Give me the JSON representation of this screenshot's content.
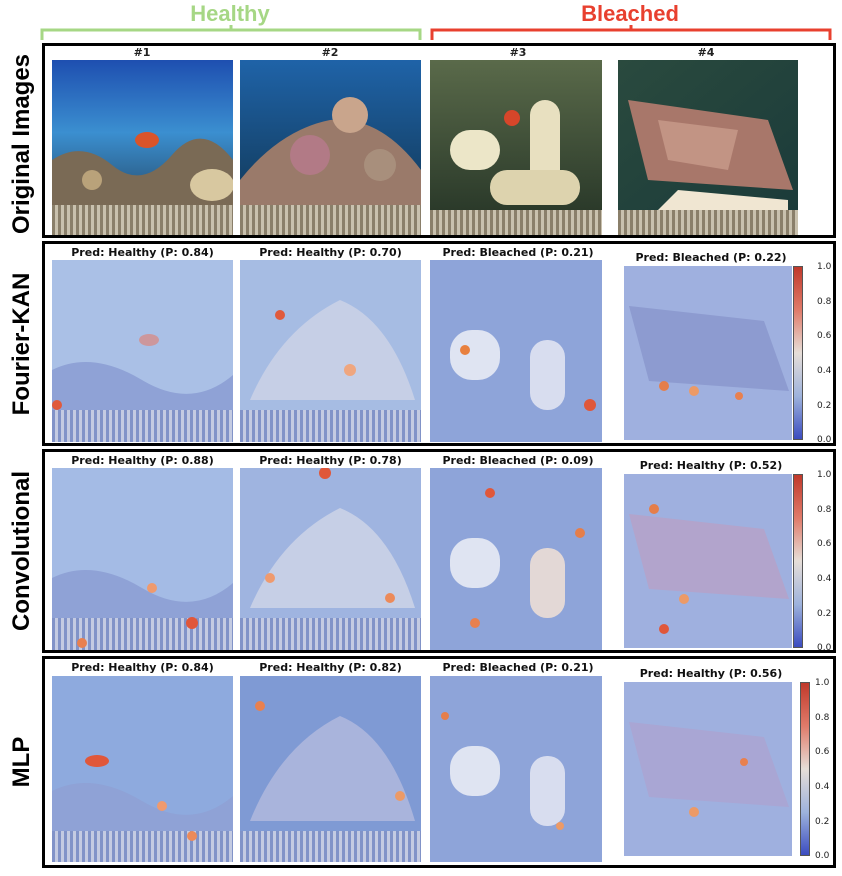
{
  "groups": {
    "healthy": {
      "label": "Healthy",
      "color": "#a6d785"
    },
    "bleached": {
      "label": "Bleached",
      "color": "#e8402f"
    }
  },
  "columns": [
    "#1",
    "#2",
    "#3",
    "#4"
  ],
  "rows": {
    "original": {
      "label": "Original Images"
    },
    "fourier": {
      "label": "Fourier-KAN",
      "preds": [
        "Pred: Healthy (P: 0.84)",
        "Pred: Healthy (P: 0.70)",
        "Pred: Bleached (P: 0.21)",
        "Pred: Bleached (P: 0.22)"
      ]
    },
    "conv": {
      "label": "Convolutional",
      "preds": [
        "Pred: Healthy (P: 0.88)",
        "Pred: Healthy (P: 0.78)",
        "Pred: Bleached (P: 0.09)",
        "Pred: Healthy (P: 0.52)"
      ]
    },
    "mlp": {
      "label": "MLP",
      "preds": [
        "Pred: Healthy (P: 0.84)",
        "Pred: Healthy (P: 0.82)",
        "Pred: Bleached (P: 0.21)",
        "Pred: Healthy (P: 0.56)"
      ]
    }
  },
  "colorbar": {
    "ticks": [
      "1.0",
      "0.8",
      "0.6",
      "0.4",
      "0.2",
      "0.0"
    ],
    "colors": {
      "high": "#c0392b",
      "mid": "#e6ded8",
      "low": "#3b4cc0"
    }
  }
}
